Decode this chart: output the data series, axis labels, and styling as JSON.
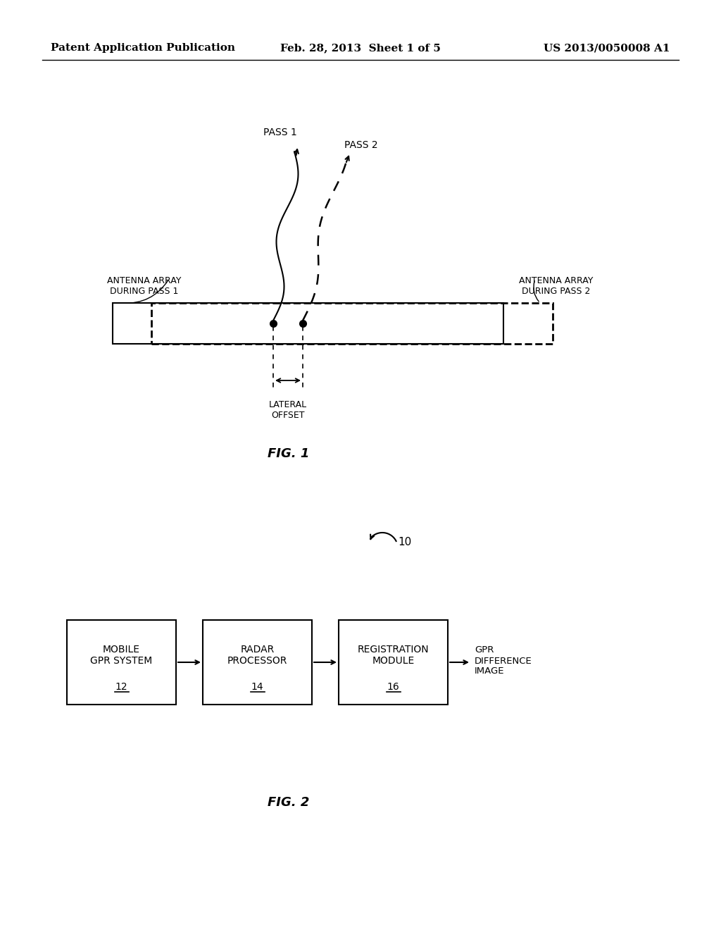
{
  "background_color": "#ffffff",
  "header_left": "Patent Application Publication",
  "header_center": "Feb. 28, 2013  Sheet 1 of 5",
  "header_right": "US 2013/0050008 A1",
  "header_fontsize": 11,
  "fig1_label": "FIG. 1",
  "fig2_label": "FIG. 2",
  "pass1_label": "PASS 1",
  "pass2_label": "PASS 2",
  "antenna_label_left": "ANTENNA ARRAY\nDURING PASS 1",
  "antenna_label_right": "ANTENNA ARRAY\nDURING PASS 2",
  "lateral_offset_label": "LATERAL\nOFFSET",
  "system_label": "10",
  "output_label": "GPR\nDIFFERENCE\nIMAGE",
  "text_color": "#000000",
  "line_color": "#000000"
}
